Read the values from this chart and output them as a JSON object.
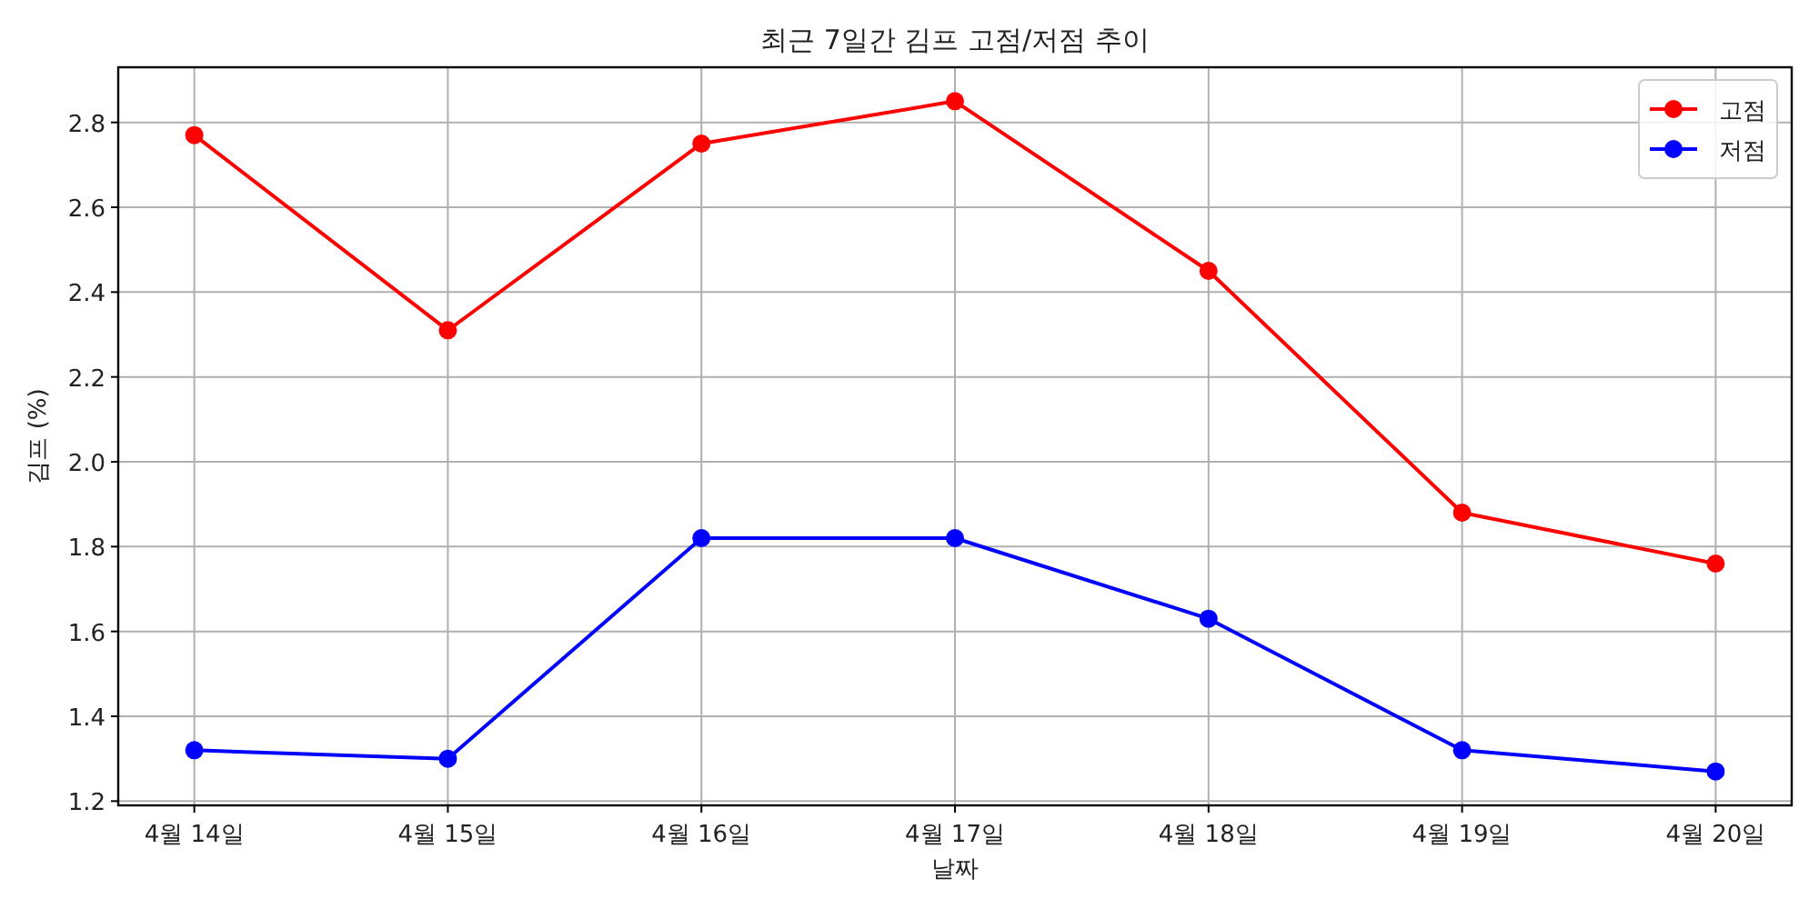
{
  "chart_data": {
    "type": "line",
    "title": "최근 7일간 김프 고점/저점 추이",
    "xlabel": "날짜",
    "ylabel": "김프 (%)",
    "categories": [
      "4월 14일",
      "4월 15일",
      "4월 16일",
      "4월 17일",
      "4월 18일",
      "4월 19일",
      "4월 20일"
    ],
    "series": [
      {
        "name": "고점",
        "color": "#ff0000",
        "values": [
          2.77,
          2.31,
          2.75,
          2.85,
          2.45,
          1.88,
          1.76
        ]
      },
      {
        "name": "저점",
        "color": "#0000ff",
        "values": [
          1.32,
          1.3,
          1.82,
          1.82,
          1.63,
          1.32,
          1.27
        ]
      }
    ],
    "ylim": [
      1.19,
      2.93
    ],
    "yticks": [
      1.2,
      1.4,
      1.6,
      1.8,
      {
        "value": 2,
        "label": "2.0"
      },
      2.2,
      2.4,
      2.6,
      2.8
    ],
    "grid": true,
    "legend": "top right",
    "marker": "circle",
    "line_style": "solid"
  }
}
